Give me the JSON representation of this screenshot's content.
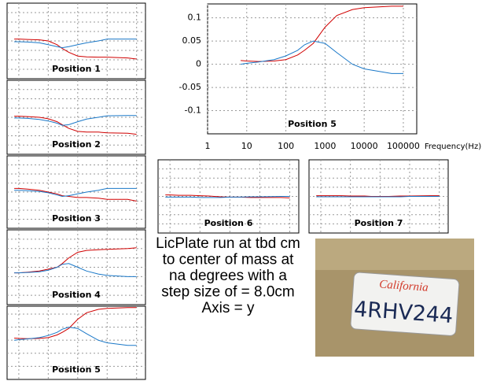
{
  "chart_data": [
    {
      "type": "line",
      "title": "Position 1",
      "x": [
        7,
        10,
        20,
        50,
        100,
        200,
        300,
        500,
        1000,
        2000,
        5000,
        10000,
        50000,
        100000
      ],
      "xlog": true,
      "xlim": [
        4,
        200000
      ],
      "xticks": [
        10,
        100,
        1000,
        10000,
        100000
      ],
      "ylim": [
        -0.1,
        0.1
      ],
      "yticks": [
        -0.075,
        -0.05,
        -0.025,
        0,
        0.025,
        0.05,
        0.075
      ],
      "grid": true,
      "tick_labels": false,
      "series": [
        {
          "color": "#d00000",
          "values": [
            0.005,
            0.005,
            0.004,
            0.003,
            0,
            -0.01,
            -0.02,
            -0.03,
            -0.04,
            -0.042,
            -0.043,
            -0.043,
            -0.045,
            -0.048
          ]
        },
        {
          "color": "#1a78c8",
          "values": [
            -0.002,
            -0.002,
            -0.003,
            -0.005,
            -0.01,
            -0.015,
            -0.018,
            -0.015,
            -0.01,
            -0.005,
            0,
            0.005,
            0.005,
            0.005
          ]
        }
      ]
    },
    {
      "type": "line",
      "title": "Position 2",
      "x": [
        7,
        10,
        20,
        50,
        100,
        200,
        300,
        500,
        1000,
        2000,
        5000,
        10000,
        50000,
        100000
      ],
      "xlog": true,
      "xlim": [
        4,
        200000
      ],
      "xticks": [
        10,
        100,
        1000,
        10000,
        100000
      ],
      "ylim": [
        -0.1,
        0.1
      ],
      "yticks": [
        -0.075,
        -0.05,
        -0.025,
        0,
        0.025,
        0.05,
        0.075
      ],
      "grid": true,
      "tick_labels": false,
      "series": [
        {
          "color": "#d00000",
          "values": [
            0.003,
            0.003,
            0.002,
            0,
            -0.004,
            -0.012,
            -0.02,
            -0.03,
            -0.038,
            -0.04,
            -0.04,
            -0.042,
            -0.043,
            -0.046
          ]
        },
        {
          "color": "#1a78c8",
          "values": [
            -0.002,
            -0.002,
            -0.003,
            -0.006,
            -0.01,
            -0.016,
            -0.022,
            -0.02,
            -0.012,
            -0.005,
            0,
            0.004,
            0.005,
            0.005
          ]
        }
      ]
    },
    {
      "type": "line",
      "title": "Position 3",
      "x": [
        7,
        10,
        20,
        50,
        100,
        200,
        300,
        500,
        1000,
        2000,
        5000,
        10000,
        50000,
        100000
      ],
      "xlog": true,
      "xlim": [
        4,
        200000
      ],
      "xticks": [
        10,
        100,
        1000,
        10000,
        100000
      ],
      "ylim": [
        -0.1,
        0.1
      ],
      "yticks": [
        -0.075,
        -0.05,
        -0.025,
        0,
        0.025,
        0.05,
        0.075
      ],
      "grid": true,
      "tick_labels": false,
      "series": [
        {
          "color": "#d00000",
          "values": [
            0.01,
            0.01,
            0.008,
            0.005,
            0,
            -0.005,
            -0.01,
            -0.012,
            -0.015,
            -0.015,
            -0.017,
            -0.02,
            -0.02,
            -0.025
          ]
        },
        {
          "color": "#1a78c8",
          "values": [
            0.005,
            0.005,
            0.004,
            0.002,
            -0.002,
            -0.008,
            -0.012,
            -0.01,
            -0.005,
            0,
            0.005,
            0.01,
            0.01,
            0.01
          ]
        }
      ]
    },
    {
      "type": "line",
      "title": "Position 4",
      "x": [
        7,
        10,
        20,
        50,
        100,
        200,
        300,
        500,
        1000,
        2000,
        5000,
        10000,
        50000,
        100000
      ],
      "xlog": true,
      "xlim": [
        4,
        200000
      ],
      "xticks": [
        10,
        100,
        1000,
        10000,
        100000
      ],
      "ylim": [
        -0.1,
        0.1
      ],
      "yticks": [
        -0.075,
        -0.05,
        -0.025,
        0,
        0.025,
        0.05,
        0.075
      ],
      "grid": true,
      "tick_labels": false,
      "series": [
        {
          "color": "#d00000",
          "values": [
            -0.015,
            -0.015,
            -0.013,
            -0.01,
            -0.005,
            0,
            0.01,
            0.025,
            0.04,
            0.045,
            0.047,
            0.048,
            0.05,
            0.052
          ]
        },
        {
          "color": "#1a78c8",
          "values": [
            -0.015,
            -0.015,
            -0.014,
            -0.012,
            -0.008,
            0,
            0.008,
            0.01,
            0,
            -0.01,
            -0.018,
            -0.022,
            -0.025,
            -0.025
          ]
        }
      ]
    },
    {
      "type": "line",
      "title": "Position 5",
      "x": [
        7,
        10,
        20,
        50,
        100,
        200,
        300,
        500,
        1000,
        2000,
        5000,
        10000,
        50000,
        100000
      ],
      "xlog": true,
      "xlim": [
        4,
        200000
      ],
      "xticks": [
        10,
        100,
        1000,
        10000,
        100000
      ],
      "ylim": [
        -0.15,
        0.13
      ],
      "yticks": [
        -0.1,
        -0.05,
        0,
        0.05,
        0.1
      ],
      "grid": true,
      "tick_labels": false,
      "series": [
        {
          "color": "#d00000",
          "values": [
            0.008,
            0.007,
            0.006,
            0.007,
            0.01,
            0.02,
            0.03,
            0.045,
            0.08,
            0.105,
            0.118,
            0.122,
            0.125,
            0.125
          ]
        },
        {
          "color": "#1a78c8",
          "values": [
            0,
            0.002,
            0.005,
            0.01,
            0.018,
            0.03,
            0.042,
            0.05,
            0.045,
            0.025,
            0,
            -0.01,
            -0.02,
            -0.02
          ]
        }
      ]
    },
    {
      "type": "line",
      "title": "Position 5",
      "x": [
        7,
        10,
        20,
        50,
        100,
        200,
        300,
        500,
        1000,
        2000,
        5000,
        10000,
        50000,
        100000
      ],
      "xlog": true,
      "xlim": [
        1,
        220000
      ],
      "xticks": [
        1,
        10,
        100,
        1000,
        10000,
        100000
      ],
      "ylim": [
        -0.15,
        0.13
      ],
      "yticks": [
        -0.1,
        -0.05,
        0,
        0.05,
        0.1
      ],
      "grid": true,
      "tick_labels": true,
      "xlabel": "Frequency(Hz)",
      "series": [
        {
          "color": "#d00000",
          "values": [
            0.008,
            0.007,
            0.006,
            0.007,
            0.01,
            0.02,
            0.03,
            0.045,
            0.08,
            0.105,
            0.118,
            0.122,
            0.125,
            0.125
          ]
        },
        {
          "color": "#1a78c8",
          "values": [
            0,
            0.002,
            0.005,
            0.01,
            0.018,
            0.03,
            0.042,
            0.05,
            0.045,
            0.025,
            0,
            -0.01,
            -0.02,
            -0.02
          ]
        }
      ]
    },
    {
      "type": "line",
      "title": "Position 6",
      "x": [
        7,
        10,
        20,
        50,
        100,
        200,
        300,
        500,
        1000,
        2000,
        5000,
        10000,
        50000,
        100000
      ],
      "xlog": true,
      "xlim": [
        4,
        200000
      ],
      "xticks": [
        10,
        100,
        1000,
        10000,
        100000
      ],
      "ylim": [
        -0.1,
        0.1
      ],
      "yticks": [
        -0.075,
        -0.05,
        -0.025,
        0,
        0.025,
        0.05,
        0.075
      ],
      "grid": true,
      "tick_labels": false,
      "series": [
        {
          "color": "#d00000",
          "values": [
            0.004,
            0.004,
            0.003,
            0.003,
            0.002,
            0.001,
            0,
            -0.001,
            -0.002,
            -0.002,
            -0.003,
            -0.003,
            -0.003,
            -0.004
          ]
        },
        {
          "color": "#1a78c8",
          "values": [
            -0.002,
            -0.002,
            -0.002,
            -0.002,
            -0.003,
            -0.003,
            -0.003,
            -0.003,
            -0.002,
            -0.002,
            -0.001,
            -0.001,
            0,
            0
          ]
        }
      ]
    },
    {
      "type": "line",
      "title": "Position 7",
      "x": [
        7,
        10,
        20,
        50,
        100,
        200,
        300,
        500,
        1000,
        2000,
        5000,
        10000,
        50000,
        100000
      ],
      "xlog": true,
      "xlim": [
        4,
        200000
      ],
      "xticks": [
        10,
        100,
        1000,
        10000,
        100000
      ],
      "ylim": [
        -0.1,
        0.1
      ],
      "yticks": [
        -0.075,
        -0.05,
        -0.025,
        0,
        0.025,
        0.05,
        0.075
      ],
      "grid": true,
      "tick_labels": false,
      "series": [
        {
          "color": "#d00000",
          "values": [
            0.002,
            0.002,
            0.002,
            0.002,
            0.001,
            0.001,
            0.001,
            0,
            0,
            0,
            0.001,
            0.001,
            0.002,
            0.002
          ]
        },
        {
          "color": "#1a78c8",
          "values": [
            -0.001,
            -0.001,
            -0.001,
            -0.001,
            -0.001,
            -0.001,
            -0.001,
            -0.001,
            -0.001,
            -0.001,
            -0.001,
            0,
            0,
            0
          ]
        }
      ]
    }
  ],
  "caption": [
    "LicPlate run at tbd cm",
    "to center of mass at",
    "na degrees with a",
    "step size of = 8.0cm",
    "Axis = y"
  ],
  "photo": {
    "state": "California",
    "plate": "4RHV244"
  }
}
